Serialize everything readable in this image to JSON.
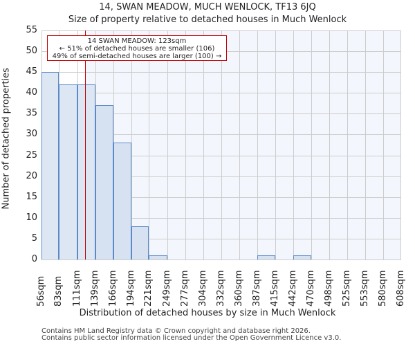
{
  "header": {
    "title": "14, SWAN MEADOW, MUCH WENLOCK, TF13 6JQ",
    "subtitle": "Size of property relative to detached houses in Much Wenlock"
  },
  "annotation": {
    "line1": "14 SWAN MEADOW: 123sqm",
    "line2": "← 51% of detached houses are smaller (106)",
    "line3": "49% of semi-detached houses are larger (100) →"
  },
  "axes": {
    "xlabel": "Distribution of detached houses by size in Much Wenlock",
    "ylabel": "Number of detached properties",
    "yticks": [
      "0",
      "5",
      "10",
      "15",
      "20",
      "25",
      "30",
      "35",
      "40",
      "45",
      "50",
      "55"
    ],
    "xticks": [
      "56sqm",
      "83sqm",
      "111sqm",
      "139sqm",
      "166sqm",
      "194sqm",
      "221sqm",
      "249sqm",
      "277sqm",
      "304sqm",
      "332sqm",
      "360sqm",
      "387sqm",
      "415sqm",
      "442sqm",
      "470sqm",
      "498sqm",
      "525sqm",
      "553sqm",
      "580sqm",
      "608sqm"
    ]
  },
  "footer": {
    "line1": "Contains HM Land Registry data © Crown copyright and database right 2026.",
    "line2": "Contains public sector information licensed under the Open Government Licence v3.0."
  },
  "colors": {
    "bar_fill": "#dbe4f3",
    "bar_edge": "#5b8ac8",
    "marker": "#c00000",
    "highlight_bg": "#f3f6fc"
  },
  "chart_data": {
    "type": "bar",
    "title": "14, SWAN MEADOW, MUCH WENLOCK, TF13 6JQ",
    "subtitle": "Size of property relative to detached houses in Much Wenlock",
    "xlabel": "Distribution of detached houses by size in Much Wenlock",
    "ylabel": "Number of detached properties",
    "categories": [
      "56sqm",
      "83sqm",
      "111sqm",
      "139sqm",
      "166sqm",
      "194sqm",
      "221sqm",
      "249sqm",
      "277sqm",
      "304sqm",
      "332sqm",
      "360sqm",
      "387sqm",
      "415sqm",
      "442sqm",
      "470sqm",
      "498sqm",
      "525sqm",
      "553sqm",
      "580sqm"
    ],
    "bin_edges": [
      56,
      83,
      111,
      139,
      166,
      194,
      221,
      249,
      277,
      304,
      332,
      360,
      387,
      415,
      442,
      470,
      498,
      525,
      553,
      580,
      608
    ],
    "values": [
      45,
      42,
      42,
      37,
      28,
      8,
      1,
      0,
      0,
      0,
      0,
      0,
      1,
      0,
      1,
      0,
      0,
      0,
      0,
      0
    ],
    "ylim": [
      0,
      55
    ],
    "xlim": [
      56,
      608
    ],
    "grid": true,
    "marker": {
      "x": 123,
      "label": "14 SWAN MEADOW: 123sqm"
    },
    "annotations": [
      "14 SWAN MEADOW: 123sqm",
      "← 51% of detached houses are smaller (106)",
      "49% of semi-detached houses are larger (100) →"
    ]
  }
}
